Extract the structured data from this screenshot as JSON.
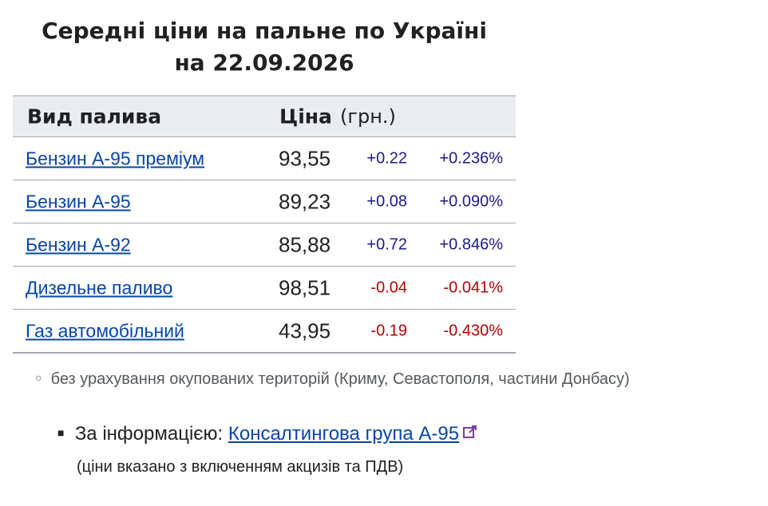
{
  "header": {
    "title_line1": "Середні ціни на пальне по Україні",
    "title_line2": "на 22.09.2026"
  },
  "table": {
    "columns": [
      "Вид палива",
      "Ціна",
      "(грн.)"
    ],
    "rows": [
      [
        "Бензин А-95 преміум",
        "93,55",
        "+0.22",
        "+0.236%"
      ],
      [
        "Бензин А-95",
        "89,23",
        "+0.08",
        "+0.090%"
      ],
      [
        "Бензин А-92",
        "85,88",
        "+0.72",
        "+0.846%"
      ],
      [
        "Дизельне паливо",
        "98,51",
        "-0.04",
        "-0.041%"
      ],
      [
        "Газ автомобільний",
        "43,95",
        "-0.19",
        "-0.430%"
      ]
    ]
  },
  "footnote": "без урахування окупованих територій (Криму, Севастополя, частини Донбасу)",
  "source": {
    "prefix": "За інформацією:",
    "link": "Консалтингова група А-95",
    "note": "(ціни вказано з включенням акцизів та ПДВ)"
  }
}
